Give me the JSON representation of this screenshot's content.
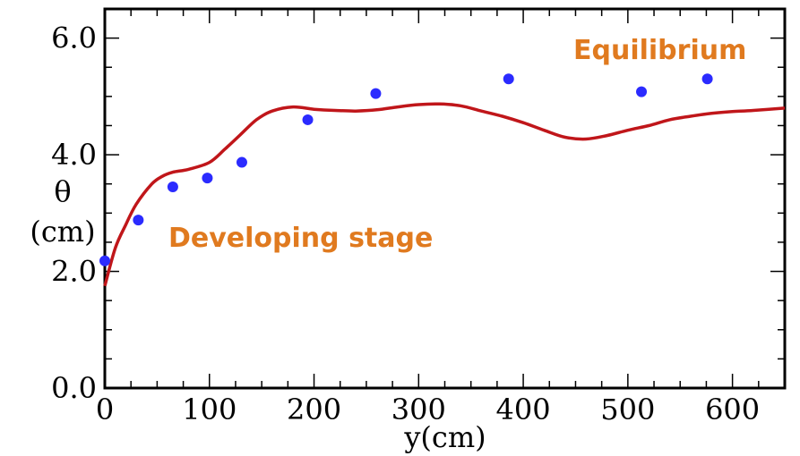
{
  "chart_data": {
    "type": "scatter",
    "xlabel": "y(cm)",
    "ylabel_line1": "θ",
    "ylabel_line2": "(cm)",
    "xlim": [
      0,
      650
    ],
    "ylim": [
      0,
      6.5
    ],
    "xticks": [
      {
        "value": 0,
        "label": "0"
      },
      {
        "value": 100,
        "label": "100"
      },
      {
        "value": 200,
        "label": "200"
      },
      {
        "value": 300,
        "label": "300"
      },
      {
        "value": 400,
        "label": "400"
      },
      {
        "value": 500,
        "label": "500"
      },
      {
        "value": 600,
        "label": "600"
      }
    ],
    "yticks": [
      {
        "value": 0,
        "label": "0.0"
      },
      {
        "value": 2,
        "label": "2.0"
      },
      {
        "value": 4,
        "label": "4.0"
      },
      {
        "value": 6,
        "label": "6.0"
      }
    ],
    "series": [
      {
        "kind": "points",
        "color": "#2b2bff",
        "x": [
          0,
          32,
          65,
          98,
          131,
          194,
          259,
          386,
          513,
          576
        ],
        "y": [
          2.18,
          2.88,
          3.45,
          3.6,
          3.87,
          4.6,
          5.05,
          5.3,
          5.08,
          5.3
        ]
      },
      {
        "kind": "line",
        "color": "#c0161a",
        "x": [
          0,
          10,
          20,
          30,
          45,
          55,
          65,
          80,
          100,
          115,
          130,
          145,
          160,
          180,
          200,
          220,
          240,
          260,
          280,
          300,
          320,
          340,
          360,
          380,
          400,
          420,
          440,
          460,
          480,
          500,
          520,
          540,
          560,
          580,
          600,
          620,
          650
        ],
        "y": [
          1.75,
          2.4,
          2.8,
          3.15,
          3.5,
          3.63,
          3.7,
          3.75,
          3.87,
          4.1,
          4.35,
          4.6,
          4.75,
          4.82,
          4.78,
          4.76,
          4.75,
          4.77,
          4.82,
          4.86,
          4.87,
          4.84,
          4.75,
          4.66,
          4.55,
          4.42,
          4.3,
          4.27,
          4.33,
          4.42,
          4.5,
          4.6,
          4.66,
          4.71,
          4.74,
          4.76,
          4.8
        ]
      }
    ],
    "annotations": [
      {
        "text": "Equilibrium",
        "color": "#e07a1f"
      },
      {
        "text": "Developing stage",
        "color": "#e07a1f"
      }
    ],
    "grid": false
  }
}
